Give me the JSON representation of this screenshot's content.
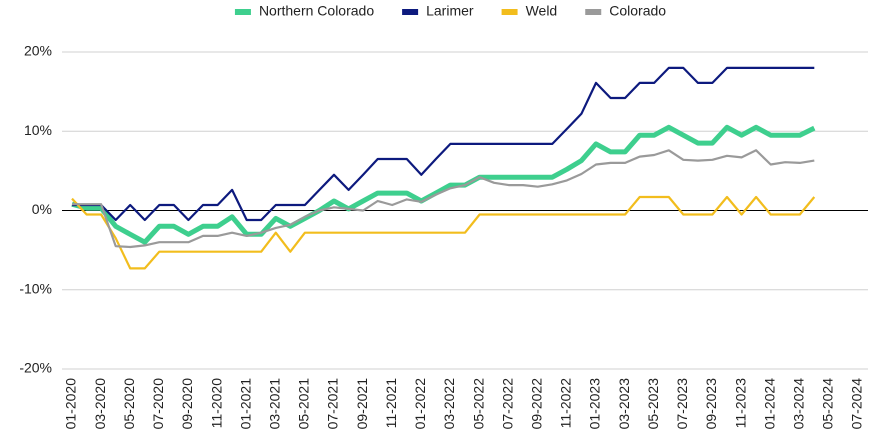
{
  "chart_data": {
    "type": "line",
    "categories": [
      "01-2020",
      null,
      "03-2020",
      null,
      "05-2020",
      null,
      "07-2020",
      null,
      "09-2020",
      null,
      "11-2020",
      null,
      "01-2021",
      null,
      "03-2021",
      null,
      "05-2021",
      null,
      "07-2021",
      null,
      "09-2021",
      null,
      "11-2021",
      null,
      "01-2022",
      null,
      "03-2022",
      null,
      "05-2022",
      null,
      "07-2022",
      null,
      "09-2022",
      null,
      "11-2022",
      null,
      "01-2023",
      null,
      "03-2023",
      null,
      "05-2023",
      null,
      "07-2023",
      null,
      "09-2023",
      null,
      "11-2023",
      null,
      "01-2024",
      null,
      "03-2024",
      null,
      "05-2024",
      null,
      "07-2024"
    ],
    "series": [
      {
        "name": "Northern Colorado",
        "color": "#3ecf8e",
        "values": [
          0.8,
          0.3,
          0.3,
          -2.0,
          -3.0,
          -4.0,
          -2.0,
          -2.0,
          -3.0,
          -2.0,
          -2.0,
          -0.8,
          -3.0,
          -3.0,
          -1.0,
          -2.0,
          -1.0,
          0.0,
          1.2,
          0.2,
          1.2,
          2.2,
          2.2,
          2.2,
          1.2,
          2.2,
          3.2,
          3.2,
          4.2,
          4.2,
          4.2,
          4.2,
          4.2,
          4.2,
          5.2,
          6.3,
          8.4,
          7.4,
          7.4,
          9.5,
          9.5,
          10.5,
          9.5,
          8.5,
          8.5,
          10.5,
          9.5,
          10.5,
          9.5,
          9.5,
          9.5,
          10.4,
          null,
          null,
          null
        ]
      },
      {
        "name": "Larimer",
        "color": "#0d1a7e",
        "values": [
          0.7,
          0.7,
          0.7,
          -1.2,
          0.7,
          -1.2,
          0.7,
          0.7,
          -1.2,
          0.7,
          0.7,
          2.6,
          -1.2,
          -1.2,
          0.7,
          0.7,
          0.7,
          2.6,
          4.5,
          2.6,
          4.5,
          6.5,
          6.5,
          6.5,
          4.5,
          6.5,
          8.4,
          8.4,
          8.4,
          8.4,
          8.4,
          8.4,
          8.4,
          8.4,
          10.3,
          12.2,
          16.1,
          14.2,
          14.2,
          16.1,
          16.1,
          18.0,
          18.0,
          16.1,
          16.1,
          18.0,
          18.0,
          18.0,
          18.0,
          18.0,
          18.0,
          18.0,
          null,
          null,
          null
        ]
      },
      {
        "name": "Weld",
        "color": "#f2bd1d",
        "values": [
          1.5,
          -0.5,
          -0.5,
          -3.5,
          -7.3,
          -7.3,
          -5.2,
          -5.2,
          -5.2,
          -5.2,
          -5.2,
          -5.2,
          -5.2,
          -5.2,
          -2.8,
          -5.2,
          -2.8,
          -2.8,
          -2.8,
          -2.8,
          -2.8,
          -2.8,
          -2.8,
          -2.8,
          -2.8,
          -2.8,
          -2.8,
          -2.8,
          -0.5,
          -0.5,
          -0.5,
          -0.5,
          -0.5,
          -0.5,
          -0.5,
          -0.5,
          -0.5,
          -0.5,
          -0.5,
          1.7,
          1.7,
          1.7,
          -0.5,
          -0.5,
          -0.5,
          1.7,
          -0.5,
          1.7,
          -0.5,
          -0.5,
          -0.5,
          1.7,
          null,
          null,
          null
        ]
      },
      {
        "name": "Colorado",
        "color": "#9a9a9a",
        "values": [
          0.8,
          0.8,
          0.8,
          -4.5,
          -4.6,
          -4.4,
          -4.0,
          -4.0,
          -4.0,
          -3.2,
          -3.2,
          -2.8,
          -3.2,
          -2.8,
          -2.2,
          -1.8,
          -0.8,
          0.0,
          0.4,
          0.2,
          0.0,
          1.2,
          0.7,
          1.4,
          1.1,
          2.0,
          2.8,
          3.2,
          4.2,
          3.5,
          3.2,
          3.2,
          3.0,
          3.3,
          3.8,
          4.6,
          5.8,
          6.0,
          6.0,
          6.8,
          7.0,
          7.6,
          6.4,
          6.3,
          6.4,
          6.9,
          6.7,
          7.6,
          5.8,
          6.1,
          6.0,
          6.3,
          null,
          null,
          null
        ]
      }
    ],
    "ylim": [
      -20,
      20
    ],
    "yticks": [
      {
        "value": -20,
        "label": "-20%"
      },
      {
        "value": -10,
        "label": "-10%"
      },
      {
        "value": 0,
        "label": "0%"
      },
      {
        "value": 10,
        "label": "10%"
      },
      {
        "value": 20,
        "label": "20%"
      }
    ],
    "grid": true,
    "legend": "top"
  }
}
